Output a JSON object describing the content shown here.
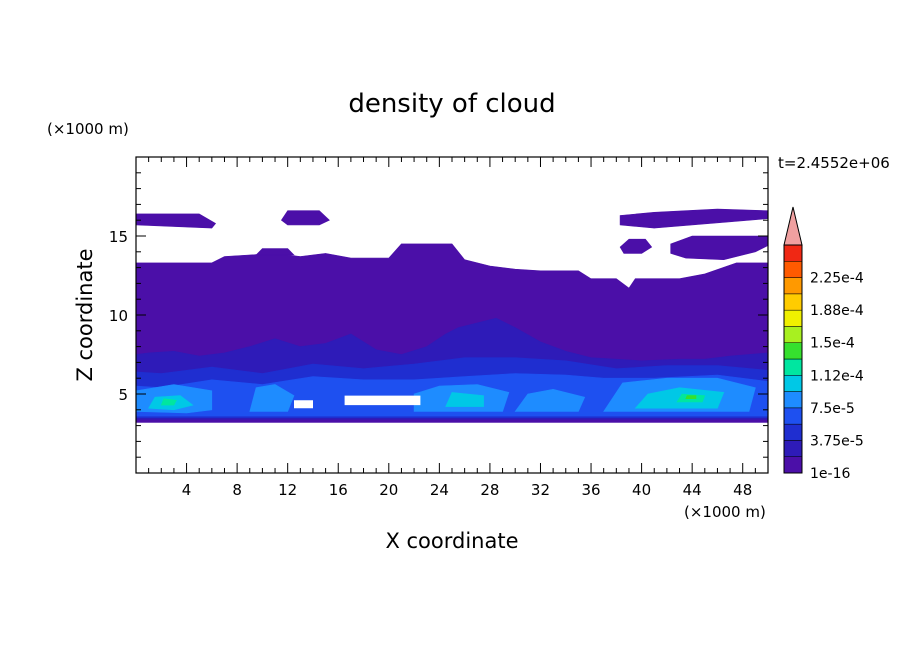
{
  "chart_data": {
    "type": "heatmap",
    "title": "density of cloud",
    "time_label": "t=2.4552e+06",
    "xlabel": "X coordinate",
    "ylabel": "Z coordinate",
    "x_unit": "(×1000 m)",
    "y_unit": "(×1000 m)",
    "xlim": [
      0,
      50
    ],
    "ylim": [
      0,
      20
    ],
    "x_ticks": [
      4,
      8,
      12,
      16,
      20,
      24,
      28,
      32,
      36,
      40,
      44,
      48
    ],
    "y_ticks": [
      5,
      10,
      15
    ],
    "grid": false,
    "colorbar": {
      "labels": [
        "1e-16",
        "3.75e-5",
        "7.5e-5",
        "1.12e-4",
        "1.5e-4",
        "1.88e-4",
        "2.25e-4"
      ],
      "colors": [
        "#4b0fa8",
        "#2e1bb8",
        "#1f2ed0",
        "#1e50f0",
        "#1e8cff",
        "#00c8e6",
        "#00e6a0",
        "#36e02e",
        "#a8f020",
        "#f0f000",
        "#ffcc00",
        "#ff9900",
        "#ff5a00",
        "#f02814",
        "#f0a0a0"
      ],
      "extend_top": true
    },
    "regions": [
      {
        "level": 0,
        "points": [
          [
            0,
            3.2
          ],
          [
            50,
            3.2
          ],
          [
            50,
            13.3
          ],
          [
            47.5,
            13.3
          ],
          [
            45,
            12.6
          ],
          [
            43,
            12.3
          ],
          [
            39.5,
            12.3
          ],
          [
            39,
            11.7
          ],
          [
            38,
            12.3
          ],
          [
            36,
            12.3
          ],
          [
            35,
            12.8
          ],
          [
            32,
            12.8
          ],
          [
            30,
            12.9
          ],
          [
            28,
            13.1
          ],
          [
            26,
            13.5
          ],
          [
            25,
            14.5
          ],
          [
            21,
            14.5
          ],
          [
            20,
            13.6
          ],
          [
            17,
            13.6
          ],
          [
            15,
            13.9
          ],
          [
            13,
            13.7
          ],
          [
            11,
            13.9
          ],
          [
            7,
            13.7
          ],
          [
            6,
            13.3
          ],
          [
            3,
            13.3
          ],
          [
            0,
            13.3
          ]
        ]
      },
      {
        "level": 0,
        "points": [
          [
            0,
            15.7
          ],
          [
            6,
            15.5
          ],
          [
            6.3,
            15.8
          ],
          [
            5,
            16.4
          ],
          [
            0,
            16.4
          ]
        ]
      },
      {
        "level": 0,
        "points": [
          [
            11.5,
            16
          ],
          [
            12,
            16.6
          ],
          [
            14.5,
            16.6
          ],
          [
            15.3,
            16
          ],
          [
            14.5,
            15.7
          ],
          [
            12,
            15.7
          ]
        ]
      },
      {
        "level": 0,
        "points": [
          [
            38.3,
            15.7
          ],
          [
            41,
            15.5
          ],
          [
            44,
            15.7
          ],
          [
            47,
            15.9
          ],
          [
            50,
            16.1
          ],
          [
            50,
            16.6
          ],
          [
            46,
            16.7
          ],
          [
            41,
            16.5
          ],
          [
            38.3,
            16.3
          ]
        ]
      },
      {
        "level": 0,
        "points": [
          [
            9.5,
            13.8
          ],
          [
            10,
            14.2
          ],
          [
            12,
            14.2
          ],
          [
            12.5,
            13.8
          ]
        ]
      },
      {
        "level": 0,
        "points": [
          [
            38.3,
            14.3
          ],
          [
            39,
            14.8
          ],
          [
            40.3,
            14.8
          ],
          [
            40.8,
            14.3
          ],
          [
            40,
            13.9
          ],
          [
            38.6,
            13.9
          ]
        ]
      },
      {
        "level": 0,
        "points": [
          [
            42.3,
            13.9
          ],
          [
            43.5,
            13.6
          ],
          [
            46.5,
            13.5
          ],
          [
            49,
            14.0
          ],
          [
            50,
            14.4
          ],
          [
            50,
            15.0
          ],
          [
            44,
            15.0
          ],
          [
            42.3,
            14.5
          ]
        ]
      },
      {
        "level": 1,
        "points": [
          [
            0,
            3.4
          ],
          [
            50,
            3.4
          ],
          [
            50,
            7.6
          ],
          [
            47,
            7.4
          ],
          [
            45,
            7.2
          ],
          [
            43,
            7.2
          ],
          [
            40,
            7.1
          ],
          [
            38,
            7.2
          ],
          [
            36,
            7.3
          ],
          [
            34,
            7.7
          ],
          [
            32,
            8.3
          ],
          [
            30,
            9.2
          ],
          [
            28.5,
            9.8
          ],
          [
            27,
            9.5
          ],
          [
            25.5,
            9.2
          ],
          [
            24.5,
            8.8
          ],
          [
            23,
            8.0
          ],
          [
            21,
            7.5
          ],
          [
            19,
            7.8
          ],
          [
            17,
            8.8
          ],
          [
            15,
            8.2
          ],
          [
            13,
            8.0
          ],
          [
            11,
            8.5
          ],
          [
            9,
            8.0
          ],
          [
            7,
            7.6
          ],
          [
            5,
            7.4
          ],
          [
            3,
            7.7
          ],
          [
            1,
            7.6
          ],
          [
            0,
            7.5
          ]
        ]
      },
      {
        "level": 2,
        "points": [
          [
            0,
            3.5
          ],
          [
            50,
            3.5
          ],
          [
            50,
            6.5
          ],
          [
            46,
            6.8
          ],
          [
            42,
            6.8
          ],
          [
            38,
            6.6
          ],
          [
            34,
            7.1
          ],
          [
            30,
            7.3
          ],
          [
            26,
            7.3
          ],
          [
            22,
            6.9
          ],
          [
            18,
            6.6
          ],
          [
            14,
            6.9
          ],
          [
            10,
            6.3
          ],
          [
            6,
            6.7
          ],
          [
            2,
            6.3
          ],
          [
            0,
            6.4
          ]
        ]
      },
      {
        "level": 3,
        "points": [
          [
            0,
            3.6
          ],
          [
            50,
            3.6
          ],
          [
            50,
            5.8
          ],
          [
            46,
            6.2
          ],
          [
            41,
            6.0
          ],
          [
            37,
            6.0
          ],
          [
            34,
            6.2
          ],
          [
            30,
            6.3
          ],
          [
            26,
            6.1
          ],
          [
            22,
            5.9
          ],
          [
            18,
            5.9
          ],
          [
            14,
            6.1
          ],
          [
            10,
            5.6
          ],
          [
            6,
            5.9
          ],
          [
            2,
            5.4
          ],
          [
            0,
            5.5
          ]
        ]
      },
      {
        "level": 4,
        "points": [
          [
            0,
            3.9
          ],
          [
            4,
            3.8
          ],
          [
            6,
            4.0
          ],
          [
            6,
            5.2
          ],
          [
            3,
            5.6
          ],
          [
            0,
            5.2
          ]
        ]
      },
      {
        "level": 4,
        "points": [
          [
            9,
            3.9
          ],
          [
            12,
            3.9
          ],
          [
            12.5,
            4.9
          ],
          [
            11,
            5.6
          ],
          [
            9.5,
            5.4
          ]
        ]
      },
      {
        "level": 4,
        "points": [
          [
            22,
            3.9
          ],
          [
            29,
            3.9
          ],
          [
            29.5,
            5.1
          ],
          [
            27,
            5.6
          ],
          [
            24,
            5.5
          ],
          [
            22,
            5.0
          ]
        ]
      },
      {
        "level": 4,
        "points": [
          [
            30,
            3.9
          ],
          [
            35,
            3.9
          ],
          [
            35.5,
            4.8
          ],
          [
            33,
            5.3
          ],
          [
            31,
            5.0
          ]
        ]
      },
      {
        "level": 4,
        "points": [
          [
            37,
            3.9
          ],
          [
            48.5,
            3.9
          ],
          [
            49,
            5.4
          ],
          [
            46,
            6.0
          ],
          [
            42,
            6.0
          ],
          [
            38.5,
            5.7
          ]
        ]
      },
      {
        "level": 5,
        "points": [
          [
            1,
            4.1
          ],
          [
            3,
            4.0
          ],
          [
            4.5,
            4.3
          ],
          [
            3.5,
            4.9
          ],
          [
            1.5,
            4.8
          ]
        ]
      },
      {
        "level": 5,
        "points": [
          [
            24.5,
            4.2
          ],
          [
            27.5,
            4.2
          ],
          [
            27.5,
            4.9
          ],
          [
            25,
            5.1
          ]
        ]
      },
      {
        "level": 5,
        "points": [
          [
            39.5,
            4.1
          ],
          [
            46,
            4.1
          ],
          [
            46.5,
            5.1
          ],
          [
            43,
            5.4
          ],
          [
            40.5,
            5.0
          ]
        ]
      },
      {
        "level": 6,
        "points": [
          [
            2,
            4.3
          ],
          [
            3,
            4.3
          ],
          [
            3.2,
            4.6
          ],
          [
            2.2,
            4.7
          ]
        ]
      },
      {
        "level": 6,
        "points": [
          [
            42.8,
            4.5
          ],
          [
            44.8,
            4.5
          ],
          [
            45,
            4.9
          ],
          [
            43.2,
            5.0
          ]
        ]
      },
      {
        "level": 7,
        "points": [
          [
            43.5,
            4.7
          ],
          [
            44.3,
            4.7
          ],
          [
            44.3,
            4.9
          ],
          [
            43.6,
            4.9
          ]
        ]
      }
    ],
    "gaps": [
      {
        "points": [
          [
            16.5,
            4.3
          ],
          [
            22.5,
            4.3
          ],
          [
            22.5,
            4.9
          ],
          [
            16.5,
            4.9
          ]
        ]
      },
      {
        "points": [
          [
            12.5,
            4.1
          ],
          [
            14,
            4.1
          ],
          [
            14,
            4.6
          ],
          [
            12.5,
            4.6
          ]
        ]
      }
    ]
  }
}
